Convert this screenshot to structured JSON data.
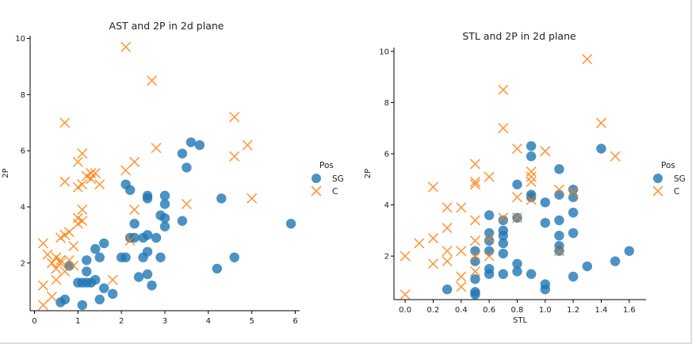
{
  "chart_data": [
    {
      "type": "scatter",
      "title": "AST and 2P in 2d plane",
      "xlabel": "",
      "ylabel": "2P",
      "xlim": [
        -0.1,
        6.1
      ],
      "ylim": [
        0.3,
        10.1
      ],
      "xticks": [
        "0",
        "1",
        "2",
        "3",
        "4",
        "5",
        "6"
      ],
      "yticks": [
        "2",
        "4",
        "6",
        "8",
        "10"
      ],
      "legend": {
        "title": "Pos",
        "entries": [
          "SG",
          "C"
        ],
        "placement": "right"
      },
      "series": [
        {
          "name": "SG",
          "marker": "circle",
          "color": "#1f77b4",
          "points": [
            [
              0.6,
              0.6
            ],
            [
              0.7,
              0.7
            ],
            [
              0.8,
              1.9
            ],
            [
              1.0,
              1.3
            ],
            [
              1.1,
              0.5
            ],
            [
              1.1,
              1.3
            ],
            [
              1.2,
              1.3
            ],
            [
              1.2,
              1.7
            ],
            [
              1.2,
              2.1
            ],
            [
              1.3,
              1.3
            ],
            [
              1.4,
              1.4
            ],
            [
              1.4,
              2.5
            ],
            [
              1.5,
              0.7
            ],
            [
              1.5,
              2.2
            ],
            [
              1.6,
              1.1
            ],
            [
              1.6,
              2.7
            ],
            [
              1.8,
              0.9
            ],
            [
              2.0,
              2.2
            ],
            [
              2.1,
              2.2
            ],
            [
              2.1,
              4.8
            ],
            [
              2.2,
              2.9
            ],
            [
              2.2,
              4.6
            ],
            [
              2.3,
              2.9
            ],
            [
              2.3,
              3.4
            ],
            [
              2.4,
              1.5
            ],
            [
              2.5,
              2.2
            ],
            [
              2.5,
              2.9
            ],
            [
              2.6,
              1.6
            ],
            [
              2.6,
              2.4
            ],
            [
              2.6,
              3.0
            ],
            [
              2.6,
              4.3
            ],
            [
              2.6,
              4.4
            ],
            [
              2.7,
              1.2
            ],
            [
              2.8,
              2.9
            ],
            [
              2.9,
              2.2
            ],
            [
              2.9,
              3.7
            ],
            [
              3.0,
              3.3
            ],
            [
              3.0,
              3.6
            ],
            [
              3.0,
              4.1
            ],
            [
              3.0,
              4.4
            ],
            [
              3.4,
              3.5
            ],
            [
              3.4,
              5.9
            ],
            [
              3.5,
              5.4
            ],
            [
              3.6,
              6.3
            ],
            [
              3.8,
              6.2
            ],
            [
              4.2,
              1.8
            ],
            [
              4.3,
              4.3
            ],
            [
              4.6,
              2.2
            ],
            [
              5.9,
              3.4
            ]
          ]
        },
        {
          "name": "C",
          "marker": "x",
          "color": "#ff7f0e",
          "points": [
            [
              0.2,
              0.5
            ],
            [
              0.2,
              1.2
            ],
            [
              0.2,
              2.7
            ],
            [
              0.3,
              2.3
            ],
            [
              0.4,
              0.8
            ],
            [
              0.4,
              2.0
            ],
            [
              0.5,
              1.4
            ],
            [
              0.5,
              1.8
            ],
            [
              0.5,
              2.2
            ],
            [
              0.6,
              2.0
            ],
            [
              0.6,
              2.1
            ],
            [
              0.6,
              2.9
            ],
            [
              0.7,
              1.7
            ],
            [
              0.7,
              3.0
            ],
            [
              0.7,
              4.9
            ],
            [
              0.7,
              7.0
            ],
            [
              0.8,
              2.1
            ],
            [
              0.8,
              3.1
            ],
            [
              0.9,
              1.9
            ],
            [
              0.9,
              2.6
            ],
            [
              1.0,
              3.4
            ],
            [
              1.0,
              3.6
            ],
            [
              1.0,
              4.7
            ],
            [
              1.0,
              5.6
            ],
            [
              1.1,
              3.5
            ],
            [
              1.1,
              3.9
            ],
            [
              1.1,
              4.8
            ],
            [
              1.1,
              5.9
            ],
            [
              1.2,
              5.1
            ],
            [
              1.3,
              5.0
            ],
            [
              1.3,
              5.2
            ],
            [
              1.4,
              5.2
            ],
            [
              1.5,
              4.8
            ],
            [
              1.8,
              1.4
            ],
            [
              2.1,
              5.3
            ],
            [
              2.1,
              9.7
            ],
            [
              2.2,
              2.8
            ],
            [
              2.3,
              3.9
            ],
            [
              2.3,
              5.6
            ],
            [
              2.7,
              8.5
            ],
            [
              2.8,
              6.1
            ],
            [
              3.5,
              4.1
            ],
            [
              4.6,
              5.8
            ],
            [
              4.6,
              7.2
            ],
            [
              4.9,
              6.2
            ],
            [
              5.0,
              4.3
            ]
          ]
        }
      ]
    },
    {
      "type": "scatter",
      "title": "STL and 2P in 2d plane",
      "xlabel": "STL",
      "ylabel": "2P",
      "xlim": [
        -0.08,
        1.72
      ],
      "ylim": [
        0.3,
        10.15
      ],
      "xticks": [
        "0.0",
        "0.2",
        "0.4",
        "0.6",
        "0.8",
        "1.0",
        "1.2",
        "1.4",
        "1.6"
      ],
      "yticks": [
        "2",
        "4",
        "6",
        "8",
        "10"
      ],
      "legend": {
        "title": "Pos",
        "entries": [
          "SG",
          "C"
        ],
        "placement": "right"
      },
      "series": [
        {
          "name": "SG",
          "marker": "circle",
          "color": "#1f77b4",
          "points": [
            [
              0.3,
              0.7
            ],
            [
              0.5,
              0.5
            ],
            [
              0.5,
              0.6
            ],
            [
              0.5,
              1.1
            ],
            [
              0.5,
              1.8
            ],
            [
              0.5,
              2.2
            ],
            [
              0.6,
              1.3
            ],
            [
              0.6,
              1.5
            ],
            [
              0.6,
              2.2
            ],
            [
              0.6,
              2.6
            ],
            [
              0.6,
              2.9
            ],
            [
              0.6,
              3.6
            ],
            [
              0.7,
              1.3
            ],
            [
              0.7,
              2.1
            ],
            [
              0.7,
              2.5
            ],
            [
              0.7,
              2.8
            ],
            [
              0.7,
              3.0
            ],
            [
              0.7,
              3.4
            ],
            [
              0.8,
              1.4
            ],
            [
              0.8,
              1.7
            ],
            [
              0.8,
              3.5
            ],
            [
              0.8,
              4.8
            ],
            [
              0.9,
              1.3
            ],
            [
              0.9,
              4.3
            ],
            [
              0.9,
              4.4
            ],
            [
              0.9,
              5.9
            ],
            [
              0.9,
              6.3
            ],
            [
              1.0,
              0.7
            ],
            [
              1.0,
              0.9
            ],
            [
              1.0,
              3.3
            ],
            [
              1.0,
              4.1
            ],
            [
              1.1,
              2.2
            ],
            [
              1.1,
              2.4
            ],
            [
              1.1,
              2.8
            ],
            [
              1.1,
              3.4
            ],
            [
              1.1,
              4.4
            ],
            [
              1.1,
              5.4
            ],
            [
              1.2,
              1.2
            ],
            [
              1.2,
              2.9
            ],
            [
              1.2,
              3.7
            ],
            [
              1.2,
              4.3
            ],
            [
              1.2,
              4.6
            ],
            [
              1.3,
              1.6
            ],
            [
              1.4,
              6.2
            ],
            [
              1.5,
              1.8
            ],
            [
              1.6,
              2.2
            ]
          ]
        },
        {
          "name": "C",
          "marker": "x",
          "color": "#ff7f0e",
          "points": [
            [
              0.0,
              0.5
            ],
            [
              0.0,
              2.0
            ],
            [
              0.1,
              2.5
            ],
            [
              0.2,
              1.7
            ],
            [
              0.2,
              2.7
            ],
            [
              0.2,
              4.7
            ],
            [
              0.3,
              1.8
            ],
            [
              0.3,
              2.2
            ],
            [
              0.3,
              3.1
            ],
            [
              0.3,
              3.9
            ],
            [
              0.4,
              0.8
            ],
            [
              0.4,
              1.2
            ],
            [
              0.4,
              2.2
            ],
            [
              0.4,
              3.9
            ],
            [
              0.5,
              1.4
            ],
            [
              0.5,
              2.0
            ],
            [
              0.5,
              2.6
            ],
            [
              0.5,
              3.4
            ],
            [
              0.5,
              4.8
            ],
            [
              0.5,
              4.9
            ],
            [
              0.5,
              5.6
            ],
            [
              0.6,
              2.0
            ],
            [
              0.6,
              2.7
            ],
            [
              0.6,
              5.1
            ],
            [
              0.7,
              3.5
            ],
            [
              0.7,
              7.0
            ],
            [
              0.7,
              8.5
            ],
            [
              0.8,
              3.5
            ],
            [
              0.8,
              4.3
            ],
            [
              0.8,
              6.2
            ],
            [
              0.9,
              4.2
            ],
            [
              0.9,
              4.9
            ],
            [
              0.9,
              5.1
            ],
            [
              0.9,
              5.3
            ],
            [
              1.0,
              6.1
            ],
            [
              1.1,
              2.2
            ],
            [
              1.1,
              4.6
            ],
            [
              1.2,
              4.5
            ],
            [
              1.3,
              9.7
            ],
            [
              1.4,
              7.2
            ],
            [
              1.5,
              5.9
            ]
          ]
        }
      ]
    }
  ]
}
